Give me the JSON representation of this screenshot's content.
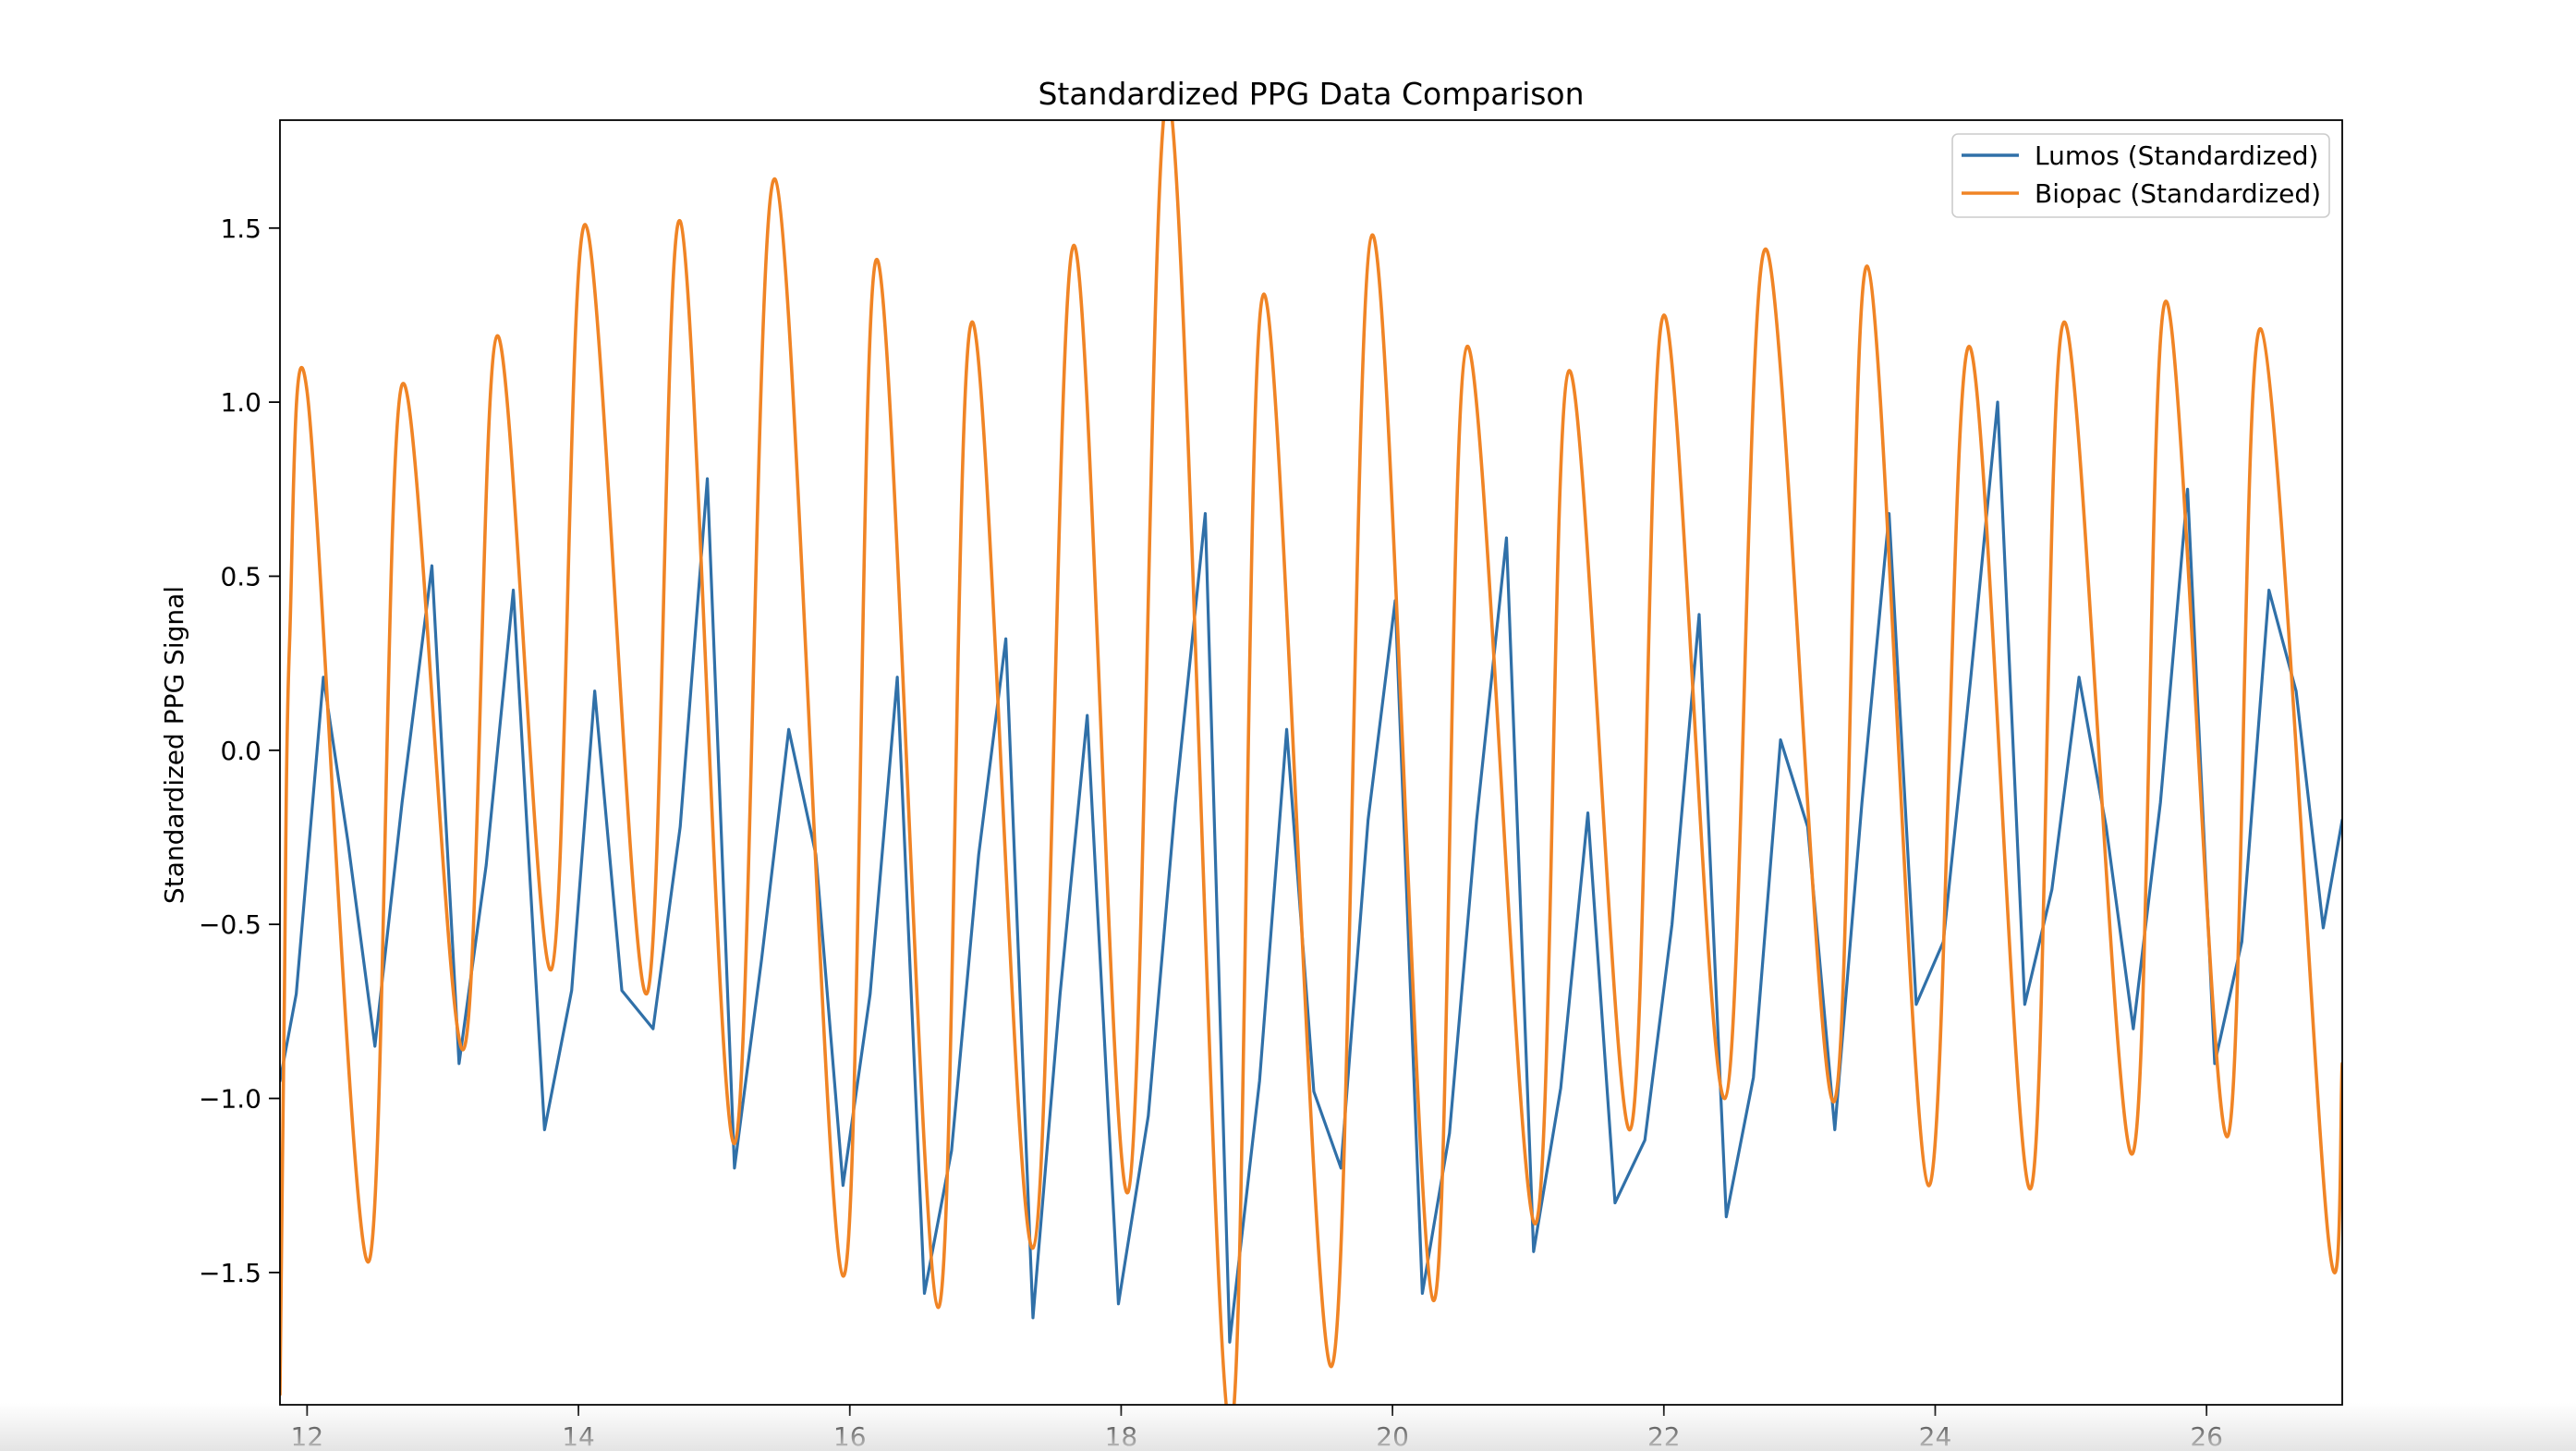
{
  "chart_data": {
    "type": "line",
    "title": "Standardized PPG Data Comparison",
    "xlabel": "",
    "ylabel": "Standardized PPG Signal",
    "xlim": [
      11.8,
      27.0
    ],
    "ylim": [
      -1.88,
      1.81
    ],
    "xticks": [
      12,
      14,
      16,
      18,
      20,
      22,
      24,
      26
    ],
    "yticks": [
      -1.5,
      -1.0,
      -0.5,
      0.0,
      0.5,
      1.0,
      1.5
    ],
    "xtick_labels": [
      "12",
      "14",
      "16",
      "18",
      "20",
      "22",
      "24",
      "26"
    ],
    "ytick_labels": [
      "−1.5",
      "−1.0",
      "−0.5",
      "0.0",
      "0.5",
      "1.0",
      "1.5"
    ],
    "grid": false,
    "legend_position": "top-right",
    "series": [
      {
        "name": "Lumos (Standardized)",
        "color": "#3070a8",
        "style": "polyline",
        "points": [
          [
            11.8,
            -0.95
          ],
          [
            11.92,
            -0.7
          ],
          [
            12.12,
            0.21
          ],
          [
            12.3,
            -0.26
          ],
          [
            12.5,
            -0.85
          ],
          [
            12.7,
            -0.15
          ],
          [
            12.92,
            0.53
          ],
          [
            13.12,
            -0.9
          ],
          [
            13.32,
            -0.33
          ],
          [
            13.52,
            0.46
          ],
          [
            13.75,
            -1.09
          ],
          [
            13.95,
            -0.69
          ],
          [
            14.12,
            0.17
          ],
          [
            14.32,
            -0.69
          ],
          [
            14.55,
            -0.8
          ],
          [
            14.75,
            -0.22
          ],
          [
            14.95,
            0.78
          ],
          [
            15.15,
            -1.2
          ],
          [
            15.35,
            -0.6
          ],
          [
            15.55,
            0.06
          ],
          [
            15.75,
            -0.3
          ],
          [
            15.95,
            -1.25
          ],
          [
            16.15,
            -0.7
          ],
          [
            16.35,
            0.21
          ],
          [
            16.55,
            -1.56
          ],
          [
            16.75,
            -1.15
          ],
          [
            16.95,
            -0.3
          ],
          [
            17.15,
            0.32
          ],
          [
            17.35,
            -1.63
          ],
          [
            17.55,
            -0.7
          ],
          [
            17.75,
            0.1
          ],
          [
            17.98,
            -1.59
          ],
          [
            18.2,
            -1.05
          ],
          [
            18.4,
            -0.15
          ],
          [
            18.62,
            0.68
          ],
          [
            18.8,
            -1.7
          ],
          [
            19.02,
            -0.95
          ],
          [
            19.22,
            0.06
          ],
          [
            19.42,
            -0.98
          ],
          [
            19.62,
            -1.2
          ],
          [
            19.82,
            -0.2
          ],
          [
            20.02,
            0.43
          ],
          [
            20.22,
            -1.56
          ],
          [
            20.42,
            -1.1
          ],
          [
            20.62,
            -0.2
          ],
          [
            20.84,
            0.61
          ],
          [
            21.04,
            -1.44
          ],
          [
            21.24,
            -0.97
          ],
          [
            21.44,
            -0.18
          ],
          [
            21.64,
            -1.3
          ],
          [
            21.86,
            -1.12
          ],
          [
            22.06,
            -0.5
          ],
          [
            22.26,
            0.39
          ],
          [
            22.46,
            -1.34
          ],
          [
            22.66,
            -0.94
          ],
          [
            22.86,
            0.03
          ],
          [
            23.06,
            -0.22
          ],
          [
            23.26,
            -1.09
          ],
          [
            23.46,
            -0.15
          ],
          [
            23.66,
            0.68
          ],
          [
            23.86,
            -0.73
          ],
          [
            24.06,
            -0.55
          ],
          [
            24.26,
            0.2
          ],
          [
            24.46,
            1.0
          ],
          [
            24.66,
            -0.73
          ],
          [
            24.86,
            -0.4
          ],
          [
            25.06,
            0.21
          ],
          [
            25.26,
            -0.22
          ],
          [
            25.46,
            -0.8
          ],
          [
            25.66,
            -0.15
          ],
          [
            25.86,
            0.75
          ],
          [
            26.06,
            -0.9
          ],
          [
            26.26,
            -0.55
          ],
          [
            26.46,
            0.46
          ],
          [
            26.66,
            0.17
          ],
          [
            26.86,
            -0.51
          ],
          [
            27.0,
            -0.2
          ]
        ]
      },
      {
        "name": "Biopac (Standardized)",
        "color": "#f08425",
        "style": "smooth",
        "points": [
          [
            11.8,
            -1.85
          ],
          [
            11.83,
            -0.8
          ],
          [
            11.87,
            0.3
          ],
          [
            12.0,
            1.03
          ],
          [
            12.45,
            -1.47
          ],
          [
            12.7,
            1.05
          ],
          [
            13.15,
            -0.86
          ],
          [
            13.4,
            1.19
          ],
          [
            13.8,
            -0.63
          ],
          [
            14.05,
            1.51
          ],
          [
            14.5,
            -0.7
          ],
          [
            14.75,
            1.52
          ],
          [
            15.15,
            -1.13
          ],
          [
            15.45,
            1.64
          ],
          [
            15.95,
            -1.51
          ],
          [
            16.2,
            1.41
          ],
          [
            16.65,
            -1.6
          ],
          [
            16.9,
            1.23
          ],
          [
            17.35,
            -1.43
          ],
          [
            17.65,
            1.45
          ],
          [
            18.05,
            -1.27
          ],
          [
            18.35,
            1.88
          ],
          [
            18.8,
            -1.95
          ],
          [
            19.05,
            1.31
          ],
          [
            19.55,
            -1.77
          ],
          [
            19.85,
            1.48
          ],
          [
            20.3,
            -1.58
          ],
          [
            20.55,
            1.16
          ],
          [
            21.05,
            -1.36
          ],
          [
            21.3,
            1.09
          ],
          [
            21.75,
            -1.09
          ],
          [
            22.0,
            1.25
          ],
          [
            22.45,
            -1.0
          ],
          [
            22.75,
            1.44
          ],
          [
            23.25,
            -1.01
          ],
          [
            23.5,
            1.39
          ],
          [
            23.95,
            -1.25
          ],
          [
            24.25,
            1.16
          ],
          [
            24.7,
            -1.26
          ],
          [
            24.95,
            1.23
          ],
          [
            25.45,
            -1.16
          ],
          [
            25.7,
            1.29
          ],
          [
            26.15,
            -1.11
          ],
          [
            26.4,
            1.21
          ],
          [
            26.9,
            -1.41
          ],
          [
            27.0,
            -0.9
          ]
        ]
      }
    ]
  }
}
